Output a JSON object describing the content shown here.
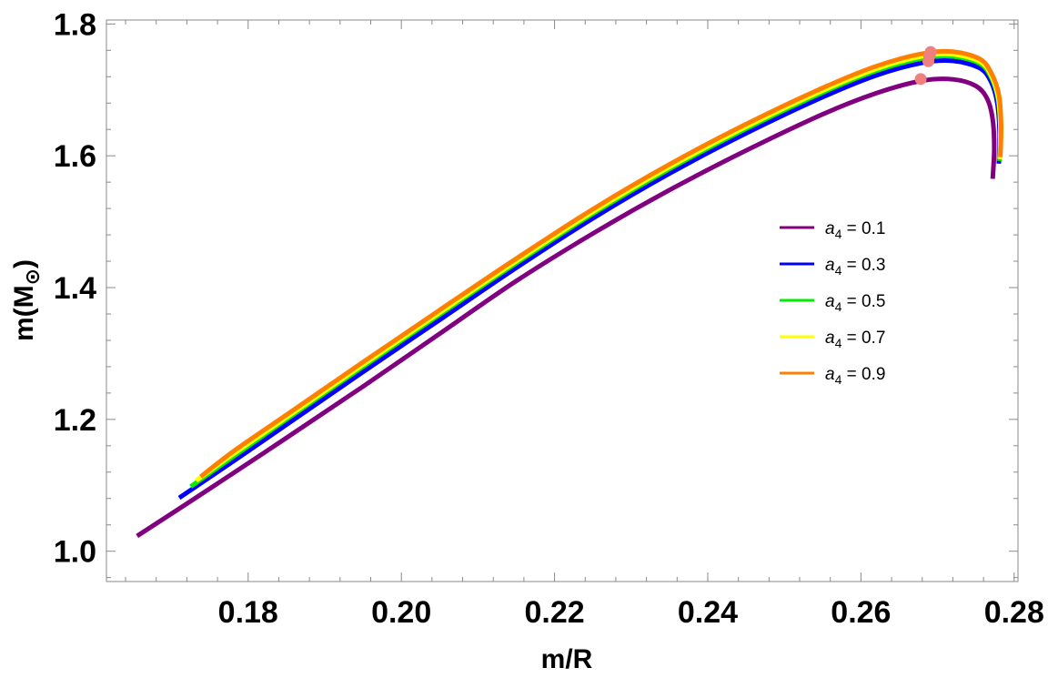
{
  "chart_data": {
    "type": "line",
    "title": "",
    "xlabel": "m/R",
    "ylabel_main": "m(M",
    "ylabel_sub": "⊙",
    "ylabel_close": ")",
    "xlim": [
      0.1615,
      0.2805
    ],
    "ylim": [
      0.954,
      1.806
    ],
    "x_ticks": [
      0.18,
      0.2,
      0.22,
      0.24,
      0.26,
      0.28
    ],
    "x_tick_labels": [
      "0.18",
      "0.20",
      "0.22",
      "0.24",
      "0.26",
      "0.28"
    ],
    "y_ticks": [
      1.0,
      1.2,
      1.4,
      1.6,
      1.8
    ],
    "y_tick_labels": [
      "1.0",
      "1.2",
      "1.4",
      "1.6",
      "1.8"
    ],
    "grid": false,
    "legend_position": "right",
    "legend_symbol": "a",
    "legend_sub": "4",
    "series": [
      {
        "name": "a4 = 0.1",
        "label_value": " = 0.1",
        "color": "#800080",
        "x": [
          0.1655,
          0.175,
          0.185,
          0.195,
          0.205,
          0.215,
          0.225,
          0.235,
          0.245,
          0.255,
          0.262,
          0.268,
          0.272,
          0.275,
          0.2765,
          0.2772,
          0.2774,
          0.2772
        ],
        "y": [
          1.023,
          1.095,
          1.172,
          1.25,
          1.33,
          1.41,
          1.482,
          1.548,
          1.608,
          1.663,
          1.695,
          1.714,
          1.716,
          1.706,
          1.686,
          1.655,
          1.611,
          1.565
        ],
        "max_point": {
          "x": 0.2678,
          "y": 1.7165
        }
      },
      {
        "name": "a4 = 0.3",
        "label_value": " = 0.3",
        "color": "#0000ff",
        "x": [
          0.171,
          0.178,
          0.185,
          0.195,
          0.205,
          0.215,
          0.225,
          0.235,
          0.245,
          0.255,
          0.262,
          0.268,
          0.272,
          0.2755,
          0.277,
          0.2778,
          0.2781,
          0.278
        ],
        "y": [
          1.081,
          1.136,
          1.192,
          1.272,
          1.351,
          1.43,
          1.505,
          1.573,
          1.634,
          1.689,
          1.722,
          1.741,
          1.744,
          1.733,
          1.712,
          1.68,
          1.635,
          1.588
        ],
        "max_point": {
          "x": 0.2688,
          "y": 1.7435
        }
      },
      {
        "name": "a4 = 0.5",
        "label_value": " = 0.5",
        "color": "#00ee00",
        "x": [
          0.1725,
          0.178,
          0.185,
          0.195,
          0.205,
          0.215,
          0.225,
          0.235,
          0.245,
          0.255,
          0.262,
          0.268,
          0.272,
          0.2755,
          0.277,
          0.2779,
          0.2782,
          0.2781
        ],
        "y": [
          1.098,
          1.143,
          1.2,
          1.28,
          1.359,
          1.437,
          1.512,
          1.58,
          1.641,
          1.696,
          1.729,
          1.748,
          1.751,
          1.74,
          1.719,
          1.686,
          1.64,
          1.592
        ],
        "max_point": {
          "x": 0.2689,
          "y": 1.7505
        }
      },
      {
        "name": "a4 = 0.7",
        "label_value": " = 0.7",
        "color": "#ffff00",
        "x": [
          0.1732,
          0.178,
          0.185,
          0.195,
          0.205,
          0.215,
          0.225,
          0.235,
          0.245,
          0.255,
          0.262,
          0.268,
          0.272,
          0.2755,
          0.277,
          0.2779,
          0.2782,
          0.2781
        ],
        "y": [
          1.107,
          1.147,
          1.203,
          1.283,
          1.362,
          1.44,
          1.515,
          1.583,
          1.644,
          1.699,
          1.732,
          1.751,
          1.754,
          1.743,
          1.722,
          1.689,
          1.643,
          1.595
        ],
        "max_point": {
          "x": 0.269,
          "y": 1.7535
        }
      },
      {
        "name": "a4 = 0.9",
        "label_value": " = 0.9",
        "color": "#ff8000",
        "x": [
          0.1738,
          0.178,
          0.185,
          0.195,
          0.205,
          0.215,
          0.225,
          0.235,
          0.245,
          0.255,
          0.262,
          0.268,
          0.272,
          0.2755,
          0.277,
          0.278,
          0.2783,
          0.2782
        ],
        "y": [
          1.113,
          1.151,
          1.207,
          1.287,
          1.366,
          1.444,
          1.519,
          1.587,
          1.648,
          1.703,
          1.736,
          1.755,
          1.758,
          1.747,
          1.726,
          1.693,
          1.647,
          1.598
        ],
        "max_point": {
          "x": 0.2691,
          "y": 1.7575
        }
      }
    ],
    "marker_color": "#f08080"
  }
}
